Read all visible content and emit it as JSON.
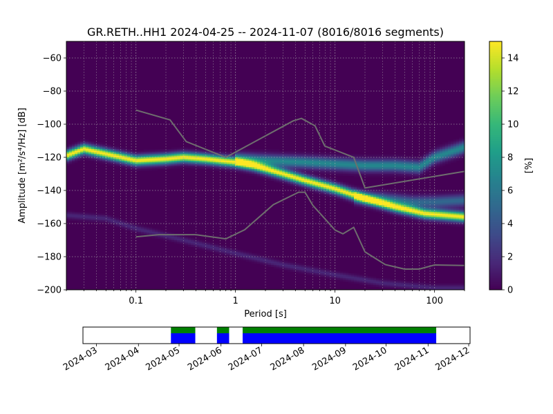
{
  "chart_data": [
    {
      "type": "heatmap",
      "title": "GR.RETH..HH1   2024-04-25 -- 2024-11-07  (8016/8016 segments)",
      "xlabel": "Period [s]",
      "ylabel": "Amplitude [m²/s⁴/Hz] [dB]",
      "x_scale": "log",
      "xlim": [
        0.02,
        200
      ],
      "ylim": [
        -200,
        -50
      ],
      "x_ticks": [
        0.1,
        1,
        10,
        100
      ],
      "x_tick_labels": [
        "0.1",
        "1",
        "10",
        "100"
      ],
      "y_ticks": [
        -200,
        -180,
        -160,
        -140,
        -120,
        -100,
        -80,
        -60
      ],
      "y_tick_labels": [
        "−200",
        "−180",
        "−160",
        "−140",
        "−120",
        "−100",
        "−80",
        "−60"
      ],
      "grid": true,
      "colormap": "viridis",
      "colorbar": {
        "label": "[%]",
        "range": [
          0,
          15
        ],
        "ticks": [
          0,
          2,
          4,
          6,
          8,
          10,
          12,
          14
        ],
        "tick_labels": [
          "0",
          "2",
          "4",
          "6",
          "8",
          "10",
          "12",
          "14"
        ]
      },
      "ppsd_bands": [
        {
          "name": "main",
          "points": [
            [
              0.02,
              -119
            ],
            [
              0.03,
              -115
            ],
            [
              0.05,
              -118
            ],
            [
              0.1,
              -122
            ],
            [
              0.2,
              -121
            ],
            [
              0.3,
              -120
            ],
            [
              0.5,
              -121
            ],
            [
              1,
              -123
            ],
            [
              1.5,
              -125
            ],
            [
              2,
              -127
            ],
            [
              3,
              -130
            ],
            [
              5,
              -134
            ],
            [
              10,
              -139
            ],
            [
              20,
              -145
            ],
            [
              40,
              -150
            ],
            [
              80,
              -154
            ],
            [
              200,
              -156
            ]
          ],
          "peak": 15
        },
        {
          "name": "microseism-branch",
          "points": [
            [
              1,
              -121
            ],
            [
              2,
              -122
            ],
            [
              5,
              -123
            ],
            [
              10,
              -124
            ],
            [
              20,
              -125
            ],
            [
              40,
              -125
            ],
            [
              70,
              -126
            ],
            [
              100,
              -120
            ],
            [
              200,
              -114
            ]
          ],
          "peak": 7
        },
        {
          "name": "long-period-branch",
          "points": [
            [
              15,
              -144
            ],
            [
              30,
              -145
            ],
            [
              60,
              -147
            ],
            [
              100,
              -147
            ],
            [
              200,
              -146
            ]
          ],
          "peak": 5
        },
        {
          "name": "faint-lower",
          "points": [
            [
              0.02,
              -155
            ],
            [
              0.05,
              -157
            ],
            [
              0.1,
              -163
            ],
            [
              0.3,
              -170
            ],
            [
              1,
              -178
            ],
            [
              3,
              -185
            ],
            [
              10,
              -191
            ],
            [
              30,
              -196
            ],
            [
              100,
              -199
            ],
            [
              200,
              -199
            ]
          ],
          "peak": 1.6
        }
      ],
      "series": [
        {
          "name": "",
          "x": [
            0.1,
            0.22,
            0.32,
            0.8,
            3.8,
            4.6,
            6.3,
            7.9,
            15.4,
            20,
            200
          ],
          "y": [
            -91.5,
            -97.4,
            -110.5,
            -120,
            -98.0,
            -96.5,
            -101,
            -113.2,
            -120,
            -138.5,
            -128.5
          ]
        },
        {
          "name": "",
          "x": [
            0.1,
            0.17,
            0.4,
            0.8,
            1.24,
            2.4,
            4.3,
            5.0,
            6.0,
            10,
            12,
            15.4,
            20,
            32,
            50,
            70,
            100,
            200
          ],
          "y": [
            -168,
            -166.7,
            -166.7,
            -169.2,
            -163.7,
            -148.6,
            -141.1,
            -141.1,
            -149.1,
            -163.9,
            -166.2,
            -162.3,
            -177.1,
            -184.8,
            -187.5,
            -187.5,
            -185,
            -185.3
          ]
        }
      ]
    },
    {
      "type": "timeline",
      "x_ticks": [
        "2024-03",
        "2024-04",
        "2024-05",
        "2024-06",
        "2024-07",
        "2024-08",
        "2024-09",
        "2024-10",
        "2024-11",
        "2024-12"
      ],
      "xlim": [
        "2024-02-20",
        "2024-12-02"
      ],
      "segments": [
        {
          "start": "2024-04-25",
          "end": "2024-05-13"
        },
        {
          "start": "2024-05-29",
          "end": "2024-06-07"
        },
        {
          "start": "2024-06-17",
          "end": "2024-11-07"
        }
      ],
      "colors": {
        "top": "#008000",
        "bottom": "#0000ff"
      }
    }
  ]
}
